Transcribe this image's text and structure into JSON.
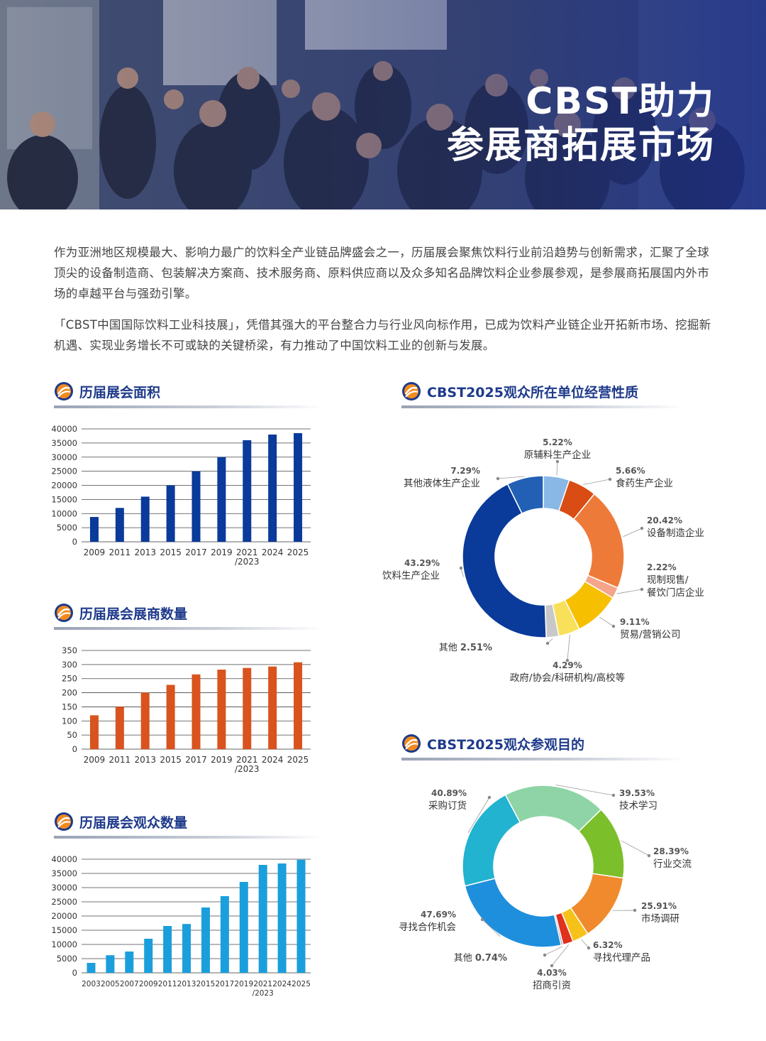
{
  "header": {
    "title_line1": "CBST助力",
    "title_line2": "参展商拓展市场"
  },
  "intro": {
    "p1": "作为亚洲地区规模最大、影响力最广的饮料全产业链品牌盛会之一，历届展会聚焦饮料行业前沿趋势与创新需求，汇聚了全球顶尖的设备制造商、包装解决方案商、技术服务商、原料供应商以及众多知名品牌饮料企业参展参观，是参展商拓展国内外市场的卓越平台与强劲引擎。",
    "p2": "「CBST中国国际饮料工业科技展」，凭借其强大的平台整合力与行业风向标作用，已成为饮料产业链企业开拓新市场、挖掘新机遇、实现业务增长不可或缺的关键桥梁，有力推动了中国饮料工业的创新与发展。"
  },
  "colors": {
    "area_bar": "#0a3a9a",
    "exhibitor_bar": "#d9531e",
    "visitor_bar": "#1a9fdc",
    "heading": "#1e3a8a",
    "hero_blue": "#1d2f7a"
  },
  "chart_data": [
    {
      "id": "area",
      "type": "bar",
      "title": "历届展会面积",
      "categories": [
        "2009",
        "2011",
        "2013",
        "2015",
        "2017",
        "2019",
        "2021\n/2023",
        "2024",
        "2025"
      ],
      "values": [
        8800,
        12000,
        16000,
        20000,
        25000,
        30000,
        36000,
        38000,
        38500
      ],
      "ylim": [
        0,
        40000
      ],
      "yticks": [
        0,
        5000,
        10000,
        15000,
        20000,
        25000,
        30000,
        35000,
        40000
      ],
      "grid": true
    },
    {
      "id": "exhibitors",
      "type": "bar",
      "title": "历届展会展商数量",
      "categories": [
        "2009",
        "2011",
        "2013",
        "2015",
        "2017",
        "2019",
        "2021\n/2023",
        "2024",
        "2025"
      ],
      "values": [
        120,
        150,
        200,
        228,
        265,
        282,
        288,
        293,
        308
      ],
      "ylim": [
        0,
        350
      ],
      "yticks": [
        0,
        50,
        100,
        150,
        200,
        250,
        300,
        350
      ],
      "grid": true
    },
    {
      "id": "visitors",
      "type": "bar",
      "title": "历届展会观众数量",
      "categories": [
        "2003",
        "2005",
        "2007",
        "2009",
        "2011",
        "2013",
        "2015",
        "2017",
        "2019",
        "2021\n/2023",
        "2024",
        "2025"
      ],
      "values": [
        3500,
        6200,
        7500,
        12000,
        16500,
        17200,
        23000,
        27000,
        32000,
        38000,
        38500,
        39800
      ],
      "ylim": [
        0,
        40000
      ],
      "yticks": [
        0,
        5000,
        10000,
        15000,
        20000,
        25000,
        30000,
        35000,
        40000
      ],
      "grid": true
    },
    {
      "id": "nature",
      "type": "pie",
      "title": "CBST2025观众所在单位经营性质",
      "slices": [
        {
          "label": "原辅料生产企业",
          "pct": "5.22%",
          "value": 5.22,
          "color": "#8ab8e6"
        },
        {
          "label": "食药生产企业",
          "pct": "5.66%",
          "value": 5.66,
          "color": "#d94c14"
        },
        {
          "label": "设备制造企业",
          "pct": "20.42%",
          "value": 20.42,
          "color": "#ee7a3a"
        },
        {
          "label": "现制现售/\n餐饮门店企业",
          "pct": "2.22%",
          "value": 2.22,
          "color": "#f5a58a"
        },
        {
          "label": "贸易/营销公司",
          "pct": "9.11%",
          "value": 9.11,
          "color": "#f6c000"
        },
        {
          "label": "政府/协会/科研机构/高校等",
          "pct": "4.29%",
          "value": 4.29,
          "color": "#f9e05a"
        },
        {
          "label": "其他",
          "pct": "2.51%",
          "value": 2.51,
          "color": "#c8c8c8"
        },
        {
          "label": "饮料生产企业",
          "pct": "43.29%",
          "value": 43.29,
          "color": "#0a3a9a"
        },
        {
          "label": "其他液体生产企业",
          "pct": "7.29%",
          "value": 7.29,
          "color": "#2160b5"
        }
      ]
    },
    {
      "id": "purpose",
      "type": "pie",
      "title": "CBST2025观众参观目的",
      "slices": [
        {
          "label": "技术学习",
          "pct": "39.53%",
          "value": 39.53,
          "color": "#8fd4a6"
        },
        {
          "label": "行业交流",
          "pct": "28.39%",
          "value": 28.39,
          "color": "#7bbf2a"
        },
        {
          "label": "市场调研",
          "pct": "25.91%",
          "value": 25.91,
          "color": "#f08a2c"
        },
        {
          "label": "寻找代理产品",
          "pct": "6.32%",
          "value": 6.32,
          "color": "#f6c21a"
        },
        {
          "label": "招商引资",
          "pct": "4.03%",
          "value": 4.03,
          "color": "#e0301e"
        },
        {
          "label": "其他",
          "pct": "0.74%",
          "value": 0.74,
          "color": "#9a9a9a"
        },
        {
          "label": "寻找合作机会",
          "pct": "47.69%",
          "value": 47.69,
          "color": "#1e8fdc"
        },
        {
          "label": "采购订货",
          "pct": "40.89%",
          "value": 40.89,
          "color": "#21b3cf"
        }
      ]
    }
  ]
}
